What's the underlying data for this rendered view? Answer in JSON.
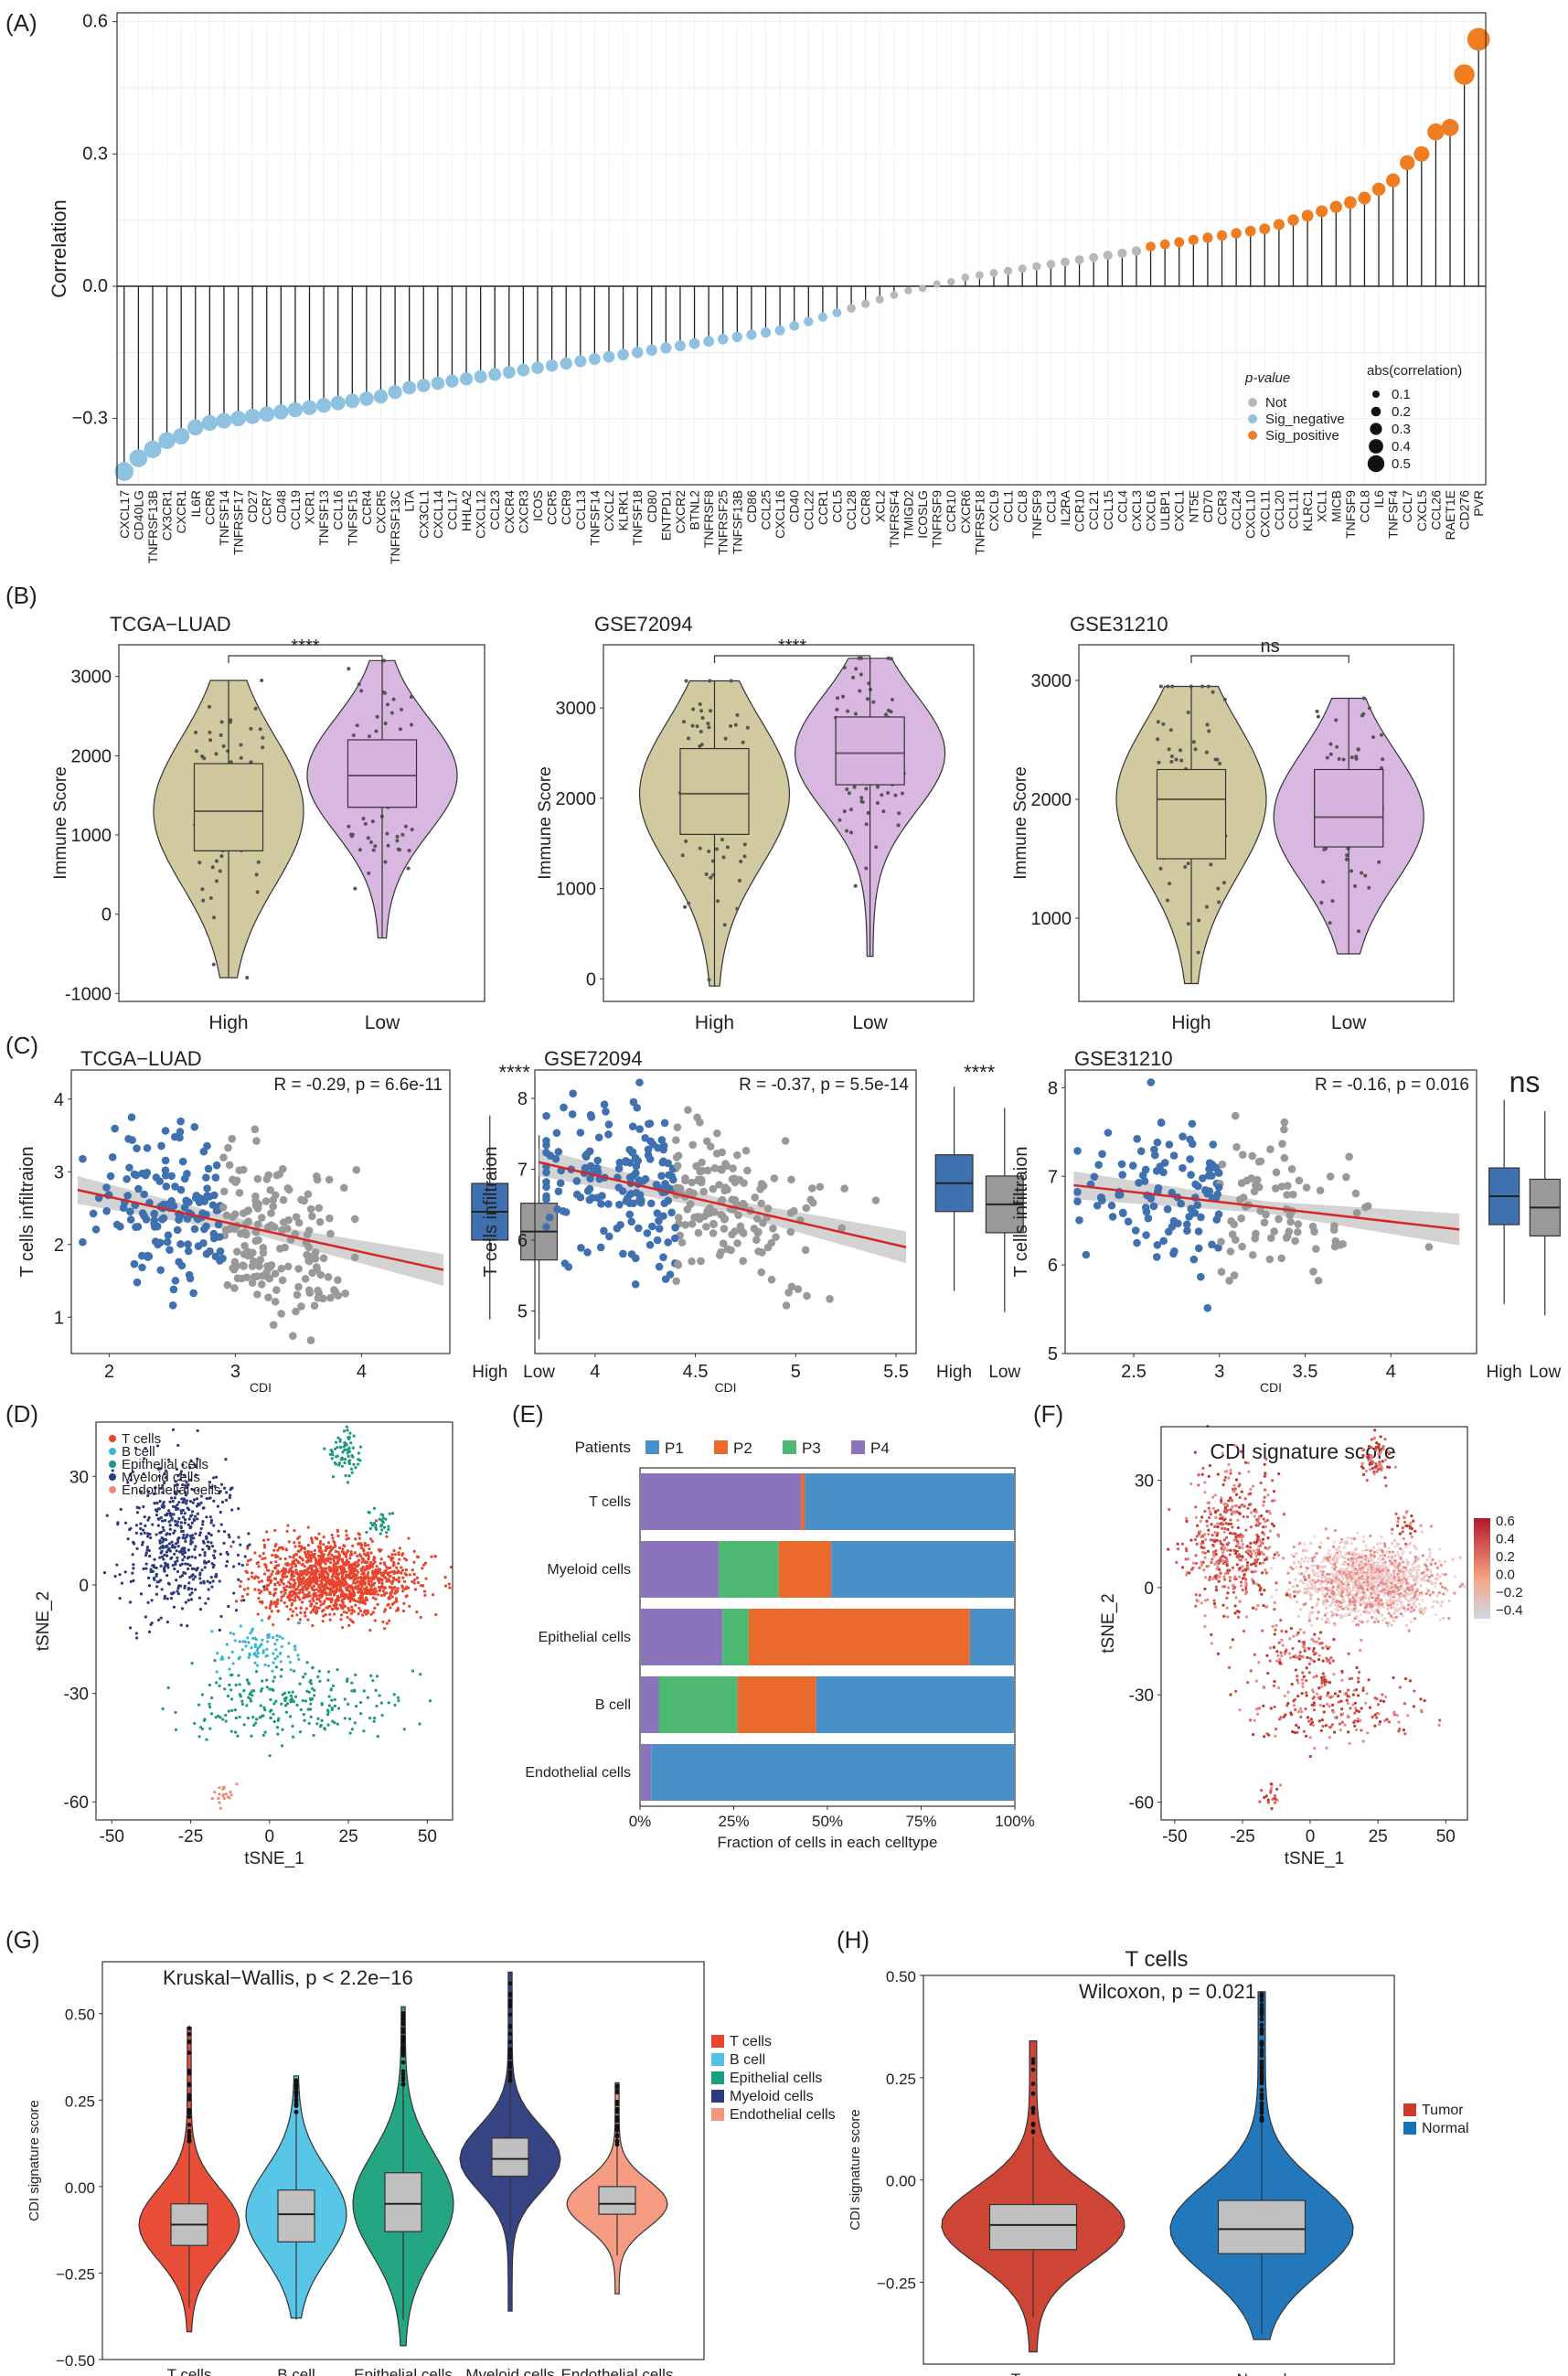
{
  "chart_data": [
    {
      "panel": "(A)",
      "type": "lollipop",
      "ylabel": "Correlation",
      "ylim": [
        -0.45,
        0.62
      ],
      "yticks": [
        "0.6",
        "0.3",
        "0.0",
        "−0.3"
      ],
      "ytick_values": [
        0.6,
        0.3,
        0.0,
        -0.3
      ],
      "categories": [
        "CXCL17",
        "CD40LG",
        "TNFRSF13B",
        "CX3CR1",
        "CXCR1",
        "IL6R",
        "CCR6",
        "TNFSF14",
        "TNFRSF17",
        "CD27",
        "CCR7",
        "CD48",
        "CCL19",
        "XCR1",
        "TNFSF13",
        "CCL16",
        "TNFSF15",
        "CCR4",
        "CXCR5",
        "TNFRSF13C",
        "LTA",
        "CX3CL1",
        "CXCL14",
        "CCL17",
        "HHLA2",
        "CXCL12",
        "CCL23",
        "CXCR4",
        "CXCR3",
        "ICOS",
        "CCR5",
        "CCR9",
        "CCL13",
        "TNFSF14",
        "CXCL2",
        "KLRK1",
        "TNFSF18",
        "CD80",
        "ENTPD1",
        "CXCR2",
        "BTNL2",
        "TNFRSF8",
        "TNFRSF25",
        "TNFSF13B",
        "CD86",
        "CCL25",
        "CXCL16",
        "CD40",
        "CCL22",
        "CCR1",
        "CCL5",
        "CCL28",
        "CCR8",
        "XCL2",
        "TNFRSF4",
        "TMIGD2",
        "ICOSLG",
        "TNFRSF9",
        "CCR10",
        "CXCR6",
        "TNFRSF18",
        "CXCL9",
        "CCL1",
        "CCL8",
        "TNFSF9",
        "CCL3",
        "IL2RA",
        "CCR10",
        "CCL21",
        "CCL15",
        "CCL4",
        "CXCL3",
        "CXCL6",
        "ULBP1",
        "CXCL1",
        "NT5E",
        "CD70",
        "CCR3",
        "CCL24",
        "CXCL10",
        "CXCL11",
        "CCL20",
        "CCL11",
        "KLRC1",
        "XCL1",
        "MICB",
        "TNFSF9",
        "CCL8",
        "IL6",
        "TNFSF4",
        "CCL7",
        "CXCL5",
        "CCL26",
        "RAET1E",
        "CD276",
        "PVR"
      ],
      "values": [
        -0.42,
        -0.39,
        -0.37,
        -0.35,
        -0.34,
        -0.32,
        -0.31,
        -0.305,
        -0.3,
        -0.295,
        -0.29,
        -0.285,
        -0.28,
        -0.275,
        -0.27,
        -0.265,
        -0.26,
        -0.255,
        -0.25,
        -0.24,
        -0.23,
        -0.225,
        -0.22,
        -0.215,
        -0.21,
        -0.205,
        -0.2,
        -0.195,
        -0.19,
        -0.185,
        -0.18,
        -0.175,
        -0.17,
        -0.165,
        -0.16,
        -0.155,
        -0.15,
        -0.145,
        -0.14,
        -0.135,
        -0.13,
        -0.125,
        -0.12,
        -0.115,
        -0.11,
        -0.105,
        -0.1,
        -0.09,
        -0.08,
        -0.07,
        -0.06,
        -0.05,
        -0.04,
        -0.03,
        -0.02,
        -0.01,
        -0.005,
        0.005,
        0.01,
        0.02,
        0.025,
        0.03,
        0.035,
        0.04,
        0.045,
        0.05,
        0.055,
        0.06,
        0.065,
        0.07,
        0.075,
        0.08,
        0.09,
        0.095,
        0.1,
        0.105,
        0.11,
        0.115,
        0.12,
        0.125,
        0.13,
        0.14,
        0.15,
        0.16,
        0.17,
        0.18,
        0.19,
        0.2,
        0.22,
        0.24,
        0.28,
        0.3,
        0.35,
        0.36,
        0.48,
        0.56
      ],
      "legend": {
        "pvalue_title": "p-value",
        "groups": [
          "Not",
          "Sig_negative",
          "Sig_positive"
        ],
        "size_title": "abs(correlation)",
        "sizes": [
          "0.1",
          "0.2",
          "0.3",
          "0.4",
          "0.5"
        ]
      },
      "colors": {
        "Not": "#b8b8b8",
        "Sig_negative": "#8fc2e0",
        "Sig_positive": "#ef7d21"
      }
    },
    {
      "panel": "(B)",
      "type": "violin-box",
      "ylabel": "Immune Score",
      "categories": [
        "High",
        "Low"
      ],
      "colors": {
        "High": "#cfc69b",
        "Low": "#d6b4df"
      },
      "plots": [
        {
          "title": "TCGA−LUAD",
          "sig": "****",
          "ylim": [
            -1100,
            3400
          ],
          "yticks": [
            -1000,
            0,
            1000,
            2000,
            3000
          ],
          "groups": [
            {
              "name": "High",
              "min": -800,
              "q1": 800,
              "median": 1300,
              "q3": 1900,
              "max": 2950
            },
            {
              "name": "Low",
              "min": -300,
              "q1": 1350,
              "median": 1750,
              "q3": 2200,
              "max": 3200
            }
          ]
        },
        {
          "title": "GSE72094",
          "sig": "****",
          "ylim": [
            -250,
            3700
          ],
          "yticks": [
            0,
            1000,
            2000,
            3000
          ],
          "groups": [
            {
              "name": "High",
              "min": -80,
              "q1": 1600,
              "median": 2050,
              "q3": 2550,
              "max": 3300
            },
            {
              "name": "Low",
              "min": 250,
              "q1": 2150,
              "median": 2500,
              "q3": 2900,
              "max": 3550
            }
          ]
        },
        {
          "title": "GSE31210",
          "sig": "ns",
          "ylim": [
            300,
            3300
          ],
          "yticks": [
            1000,
            2000,
            3000
          ],
          "groups": [
            {
              "name": "High",
              "min": 450,
              "q1": 1500,
              "median": 2000,
              "q3": 2250,
              "max": 2950
            },
            {
              "name": "Low",
              "min": 700,
              "q1": 1600,
              "median": 1850,
              "q3": 2250,
              "max": 2850
            }
          ]
        }
      ]
    },
    {
      "panel": "(C)",
      "type": "scatter-regression",
      "xlabel": "CDI",
      "ylabel": "T cells infiltraion",
      "box_categories": [
        "High",
        "Low"
      ],
      "colors": {
        "High": "#3f70b0",
        "Low": "#999999",
        "line": "#d62728"
      },
      "plots": [
        {
          "title": "TCGA−LUAD",
          "annotation": "R = -0.29, p = 6.6e-11",
          "sig": "****",
          "xlim": [
            1.7,
            4.7
          ],
          "ylim": [
            0.5,
            4.4
          ],
          "xticks": [
            2,
            3,
            4
          ],
          "yticks": [
            1,
            2,
            3,
            4
          ],
          "line": [
            [
              1.75,
              2.75
            ],
            [
              4.65,
              1.65
            ]
          ],
          "split": 2.9
        },
        {
          "title": "GSE72094",
          "annotation": "R = -0.37, p = 5.5e-14",
          "sig": "****",
          "xlim": [
            3.7,
            5.6
          ],
          "ylim": [
            4.4,
            8.4
          ],
          "xticks": [
            4.0,
            4.5,
            5.0,
            5.5
          ],
          "yticks": [
            5,
            6,
            7,
            8
          ],
          "line": [
            [
              3.72,
              7.1
            ],
            [
              5.55,
              5.9
            ]
          ],
          "split": 4.4
        },
        {
          "title": "GSE31210",
          "annotation": "R = -0.16, p = 0.016",
          "sig": "ns",
          "xlim": [
            2.1,
            4.5
          ],
          "ylim": [
            5.0,
            8.2
          ],
          "xticks": [
            2.5,
            3.0,
            3.5,
            4.0
          ],
          "yticks": [
            5,
            6,
            7,
            8
          ],
          "line": [
            [
              2.15,
              6.9
            ],
            [
              4.4,
              6.4
            ]
          ],
          "split": 3.0
        }
      ]
    },
    {
      "panel": "(D)",
      "type": "scatter",
      "xlabel": "tSNE_1",
      "ylabel": "tSNE_2",
      "xticks": [
        -50,
        -25,
        0,
        25,
        50
      ],
      "yticks": [
        -60,
        -30,
        0,
        30
      ],
      "legend": [
        "T cells",
        "B cell",
        "Epithelial cells",
        "Myeloid cells",
        "Endothelial cells"
      ],
      "colors": [
        "#e8442e",
        "#3bb8d0",
        "#1a9a7a",
        "#2b3a7c",
        "#f08a78"
      ]
    },
    {
      "panel": "(E)",
      "type": "bar",
      "stacked": true,
      "legend_title": "Patients",
      "series_names": [
        "P1",
        "P2",
        "P3",
        "P4"
      ],
      "colors": {
        "P1": "#4a90c8",
        "P2": "#ea6a2c",
        "P3": "#4cb872",
        "P4": "#8c74bd"
      },
      "categories": [
        "T cells",
        "Myeloid cells",
        "Epithelial cells",
        "B cell",
        "Endothelial cells"
      ],
      "series": [
        {
          "name": "P4",
          "values": [
            43,
            21,
            22,
            5,
            3
          ]
        },
        {
          "name": "P3",
          "values": [
            0,
            16,
            7,
            21,
            0
          ]
        },
        {
          "name": "P2",
          "values": [
            1,
            14,
            59,
            21,
            0
          ]
        },
        {
          "name": "P1",
          "values": [
            56,
            49,
            12,
            53,
            97
          ]
        }
      ],
      "xlabel": "Fraction of cells in each celltype",
      "xticks": [
        "0%",
        "25%",
        "50%",
        "75%",
        "100%"
      ]
    },
    {
      "panel": "(F)",
      "type": "scatter",
      "title": "CDI signature score",
      "xlabel": "tSNE_1",
      "ylabel": "tSNE_2",
      "xticks": [
        -50,
        -25,
        0,
        25,
        50
      ],
      "yticks": [
        -60,
        -30,
        0,
        30
      ],
      "colorbar": [
        "0.6",
        "0.4",
        "0.2",
        "0.0",
        "−0.2",
        "−0.4"
      ]
    },
    {
      "panel": "(G)",
      "type": "violin-box",
      "annotation": "Kruskal−Wallis, p < 2.2e−16",
      "ylabel": "CDI signature score",
      "ylim": [
        -0.5,
        0.65
      ],
      "yticks": [
        "0.50",
        "0.25",
        "0.00",
        "−0.25",
        "−0.50"
      ],
      "ytick_values": [
        0.5,
        0.25,
        0.0,
        -0.25,
        -0.5
      ],
      "categories": [
        "T cells",
        "B cell",
        "Epithelial cells",
        "Myeloid cells",
        "Endothelial cells"
      ],
      "colors": [
        "#e8442e",
        "#4fc3e6",
        "#18a17c",
        "#2b3a7c",
        "#f5977c"
      ],
      "groups": [
        {
          "name": "T cells",
          "min": -0.42,
          "q1": -0.17,
          "median": -0.11,
          "q3": -0.05,
          "max": 0.46
        },
        {
          "name": "B cell",
          "min": -0.38,
          "q1": -0.16,
          "median": -0.08,
          "q3": -0.01,
          "max": 0.32
        },
        {
          "name": "Epithelial cells",
          "min": -0.46,
          "q1": -0.13,
          "median": -0.05,
          "q3": 0.04,
          "max": 0.52
        },
        {
          "name": "Myeloid cells",
          "min": -0.36,
          "q1": 0.03,
          "median": 0.08,
          "q3": 0.14,
          "max": 0.62
        },
        {
          "name": "Endothelial cells",
          "min": -0.31,
          "q1": -0.08,
          "median": -0.05,
          "q3": 0.0,
          "max": 0.3
        }
      ]
    },
    {
      "panel": "(H)",
      "type": "violin-box",
      "title": "T cells",
      "annotation": "Wilcoxon, p = 0.021",
      "ylabel": "CDI signature score",
      "ylim": [
        -0.45,
        0.5
      ],
      "yticks": [
        "0.50",
        "0.25",
        "0.00",
        "−0.25"
      ],
      "ytick_values": [
        0.5,
        0.25,
        0.0,
        -0.25
      ],
      "categories": [
        "Tumor",
        "Normal"
      ],
      "colors": [
        "#cc3b2a",
        "#1771b8"
      ],
      "groups": [
        {
          "name": "Tumor",
          "min": -0.42,
          "q1": -0.17,
          "median": -0.11,
          "q3": -0.06,
          "max": 0.34
        },
        {
          "name": "Normal",
          "min": -0.39,
          "q1": -0.18,
          "median": -0.12,
          "q3": -0.05,
          "max": 0.46
        }
      ]
    }
  ]
}
